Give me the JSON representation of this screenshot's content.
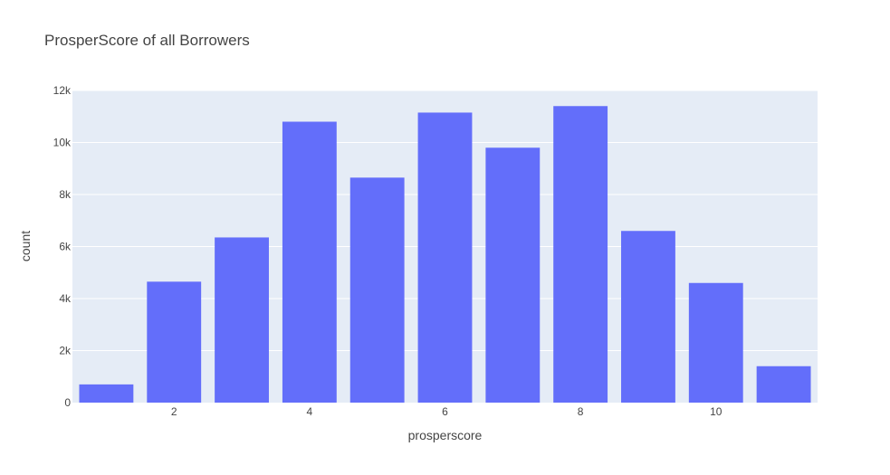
{
  "chart_data": {
    "type": "bar",
    "title": "ProsperScore of all Borrowers",
    "xlabel": "prosperscore",
    "ylabel": "count",
    "x": [
      1,
      2,
      3,
      4,
      5,
      6,
      7,
      8,
      9,
      10,
      11
    ],
    "values": [
      700,
      4650,
      6350,
      10800,
      8650,
      11150,
      9800,
      11400,
      6600,
      4600,
      1400
    ],
    "xlim": [
      0.5,
      11.5
    ],
    "ylim": [
      0,
      12000
    ],
    "xticks": [
      2,
      4,
      6,
      8,
      10
    ],
    "xtick_labels": [
      "2",
      "4",
      "6",
      "8",
      "10"
    ],
    "yticks": [
      0,
      2000,
      4000,
      6000,
      8000,
      10000,
      12000
    ],
    "ytick_labels": [
      "0",
      "2k",
      "4k",
      "6k",
      "8k",
      "10k",
      "12k"
    ],
    "grid": true,
    "colors": {
      "bar": "#636efa",
      "plot_bg": "#e5ecf6",
      "grid": "#ffffff"
    }
  }
}
